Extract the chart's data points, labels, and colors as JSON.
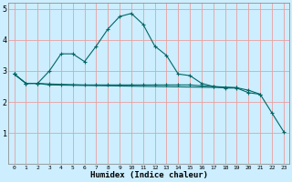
{
  "xlabel": "Humidex (Indice chaleur)",
  "bg_color": "#cceeff",
  "grid_color_v": "#e8a0a0",
  "grid_color_h": "#e8a0a0",
  "line_color": "#006666",
  "xlim": [
    -0.5,
    23.5
  ],
  "ylim": [
    0,
    5.2
  ],
  "yticks": [
    1,
    2,
    3,
    4,
    5
  ],
  "xticks": [
    0,
    1,
    2,
    3,
    4,
    5,
    6,
    7,
    8,
    9,
    10,
    11,
    12,
    13,
    14,
    15,
    16,
    17,
    18,
    19,
    20,
    21,
    22,
    23
  ],
  "line1_x": [
    0,
    1,
    2,
    3,
    4,
    5,
    6,
    7,
    8,
    9,
    10,
    11,
    12,
    13,
    14,
    15,
    16,
    17,
    18,
    19,
    20,
    21
  ],
  "line1_y": [
    2.9,
    2.6,
    2.6,
    3.0,
    3.55,
    3.55,
    3.3,
    3.8,
    4.35,
    4.75,
    4.85,
    4.5,
    3.8,
    3.5,
    2.9,
    2.85,
    2.6,
    2.5,
    2.45,
    2.45,
    2.3,
    2.25
  ],
  "line2_x": [
    0,
    1,
    2,
    3,
    4,
    5,
    6,
    7,
    8,
    9,
    10,
    11,
    12,
    13,
    14,
    15,
    16,
    17,
    18,
    19
  ],
  "line2_y": [
    2.9,
    2.6,
    2.6,
    2.58,
    2.57,
    2.56,
    2.55,
    2.55,
    2.55,
    2.55,
    2.55,
    2.55,
    2.55,
    2.55,
    2.55,
    2.55,
    2.52,
    2.5,
    2.48,
    2.46
  ],
  "line3_x": [
    0,
    1,
    2,
    3,
    19,
    20,
    21,
    22,
    23
  ],
  "line3_y": [
    2.9,
    2.6,
    2.6,
    2.55,
    2.46,
    2.38,
    2.25,
    1.65,
    1.05
  ]
}
